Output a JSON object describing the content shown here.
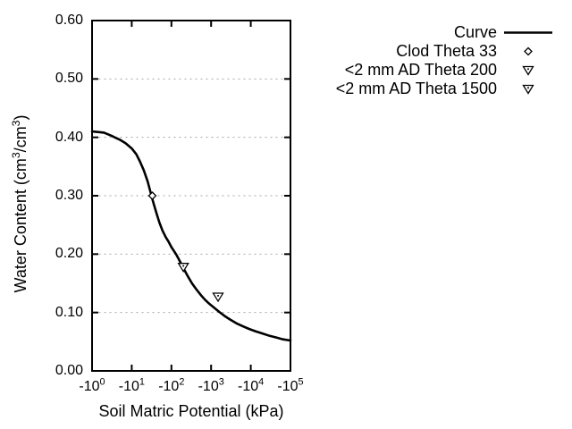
{
  "colors": {
    "curve": "#000000",
    "grid": "#a6a6a6",
    "text": "#000000",
    "background": "#ffffff"
  },
  "chart_data": {
    "type": "line",
    "title": "",
    "xlabel": "Soil Matric Potential (kPa)",
    "ylabel": "Water Content (cm^3/cm^3)",
    "grid": "horizontal-dotted",
    "x_axis": {
      "scale": "negative-log10",
      "range_decades": [
        0,
        5
      ],
      "ticks": [
        {
          "label": "-10^0",
          "decade": 0
        },
        {
          "label": "-10^1",
          "decade": 1
        },
        {
          "label": "-10^2",
          "decade": 2
        },
        {
          "label": "-10^3",
          "decade": 3
        },
        {
          "label": "-10^4",
          "decade": 4
        },
        {
          "label": "-10^5",
          "decade": 5
        }
      ]
    },
    "y_axis": {
      "range": [
        0.0,
        0.6
      ],
      "ticks": [
        {
          "label": "0.00",
          "value": 0.0
        },
        {
          "label": "0.10",
          "value": 0.1
        },
        {
          "label": "0.20",
          "value": 0.2
        },
        {
          "label": "0.30",
          "value": 0.3
        },
        {
          "label": "0.40",
          "value": 0.4
        },
        {
          "label": "0.50",
          "value": 0.5
        },
        {
          "label": "0.60",
          "value": 0.6
        }
      ],
      "gridlines": [
        0.1,
        0.2,
        0.3,
        0.4,
        0.5
      ]
    },
    "series": [
      {
        "name": "Curve",
        "type": "line",
        "marker": "none",
        "points": [
          [
            1,
            0.41
          ],
          [
            1.5,
            0.409
          ],
          [
            2,
            0.408
          ],
          [
            3,
            0.403
          ],
          [
            4,
            0.399
          ],
          [
            5,
            0.396
          ],
          [
            7,
            0.39
          ],
          [
            10,
            0.381
          ],
          [
            13,
            0.371
          ],
          [
            16,
            0.359
          ],
          [
            20,
            0.344
          ],
          [
            25,
            0.325
          ],
          [
            30,
            0.305
          ],
          [
            35,
            0.288
          ],
          [
            42,
            0.27
          ],
          [
            50,
            0.254
          ],
          [
            60,
            0.24
          ],
          [
            72,
            0.229
          ],
          [
            85,
            0.221
          ],
          [
            100,
            0.212
          ],
          [
            130,
            0.2
          ],
          [
            165,
            0.187
          ],
          [
            205,
            0.175
          ],
          [
            260,
            0.162
          ],
          [
            330,
            0.15
          ],
          [
            420,
            0.14
          ],
          [
            550,
            0.13
          ],
          [
            700,
            0.122
          ],
          [
            900,
            0.115
          ],
          [
            1200,
            0.108
          ],
          [
            1600,
            0.101
          ],
          [
            2200,
            0.094
          ],
          [
            3000,
            0.088
          ],
          [
            4500,
            0.081
          ],
          [
            6500,
            0.076
          ],
          [
            9000,
            0.072
          ],
          [
            13000,
            0.068
          ],
          [
            20000,
            0.064
          ],
          [
            30000,
            0.06
          ],
          [
            45000,
            0.057
          ],
          [
            65000,
            0.054
          ],
          [
            100000,
            0.052
          ]
        ]
      },
      {
        "name": "Clod Theta 33",
        "type": "scatter",
        "marker": "diamond-open",
        "points": [
          [
            33,
            0.3
          ]
        ]
      },
      {
        "name": "<2 mm AD Theta 200",
        "type": "scatter",
        "marker": "triangle-down-open-dot",
        "points": [
          [
            200,
            0.178
          ]
        ]
      },
      {
        "name": "<2 mm AD Theta 1500",
        "type": "scatter",
        "marker": "triangle-down-open-dot",
        "points": [
          [
            1500,
            0.127
          ]
        ]
      }
    ],
    "legend": {
      "position": "top-right-outside",
      "entries": [
        {
          "series": 0,
          "symbol": "line"
        },
        {
          "series": 1,
          "symbol": "diamond-open"
        },
        {
          "series": 2,
          "symbol": "triangle-down-open-dot"
        },
        {
          "series": 3,
          "symbol": "triangle-down-open-dot"
        }
      ]
    }
  }
}
